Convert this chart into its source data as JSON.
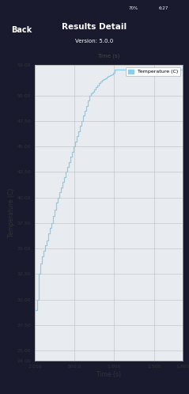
{
  "title": "Results Detail",
  "subtitle": "Version: 5.0.0",
  "xlabel": "Time (s)",
  "ylabel": "Temperature (C)",
  "x_label_top": "Time (s)",
  "legend_label": "Temperature (C)",
  "legend_color": "#87CEEB",
  "line_color": "#87CEEB",
  "plot_bg_color": "#e8ecf0",
  "fig_bg_color": "#1a1a2e",
  "header_bg": "#2c5f8a",
  "header_text_color": "#ffffff",
  "back_text_color": "#ffffff",
  "axis_label_color": "#333333",
  "tick_label_color": "#333333",
  "grid_color": "#aaaaaa",
  "xlim": [
    2.016,
    1860
  ],
  "ylim": [
    24.0,
    53.0
  ],
  "xticks": [
    2.016,
    500.0,
    1000,
    1500,
    1860
  ],
  "xtick_labels": [
    "2.016",
    "500.0",
    "1,000",
    "1,500",
    "1,860"
  ],
  "yticks": [
    24.0,
    25.0,
    27.5,
    30.0,
    32.5,
    35.0,
    37.5,
    40.0,
    42.5,
    45.0,
    47.5,
    50.0,
    53.0
  ],
  "ytick_labels": [
    "24.00",
    "25.00",
    "27.50",
    "30.00",
    "32.50",
    "35.00",
    "37.50",
    "40.00",
    "42.50",
    "45.00",
    "47.50",
    "50.00",
    "53.00"
  ],
  "time_data": [
    2.016,
    30,
    50,
    70,
    90,
    110,
    130,
    150,
    170,
    190,
    210,
    230,
    250,
    270,
    290,
    310,
    330,
    350,
    370,
    390,
    410,
    430,
    450,
    470,
    490,
    510,
    530,
    550,
    570,
    590,
    610,
    630,
    650,
    670,
    690,
    710,
    730,
    750,
    770,
    790,
    810,
    830,
    850,
    870,
    890,
    910,
    930,
    950,
    970,
    990,
    1010,
    1860
  ],
  "temp_data": [
    29.0,
    30.0,
    32.5,
    33.5,
    34.2,
    34.8,
    35.3,
    35.8,
    36.5,
    37.0,
    37.5,
    38.2,
    38.8,
    39.5,
    40.0,
    40.5,
    41.0,
    41.5,
    42.0,
    42.5,
    43.0,
    43.5,
    44.0,
    44.5,
    45.0,
    45.5,
    46.0,
    46.5,
    47.0,
    47.5,
    48.0,
    48.5,
    49.0,
    49.5,
    50.0,
    50.2,
    50.4,
    50.6,
    50.8,
    51.0,
    51.2,
    51.4,
    51.5,
    51.6,
    51.7,
    51.8,
    51.9,
    52.0,
    52.1,
    52.2,
    52.5,
    52.5
  ]
}
